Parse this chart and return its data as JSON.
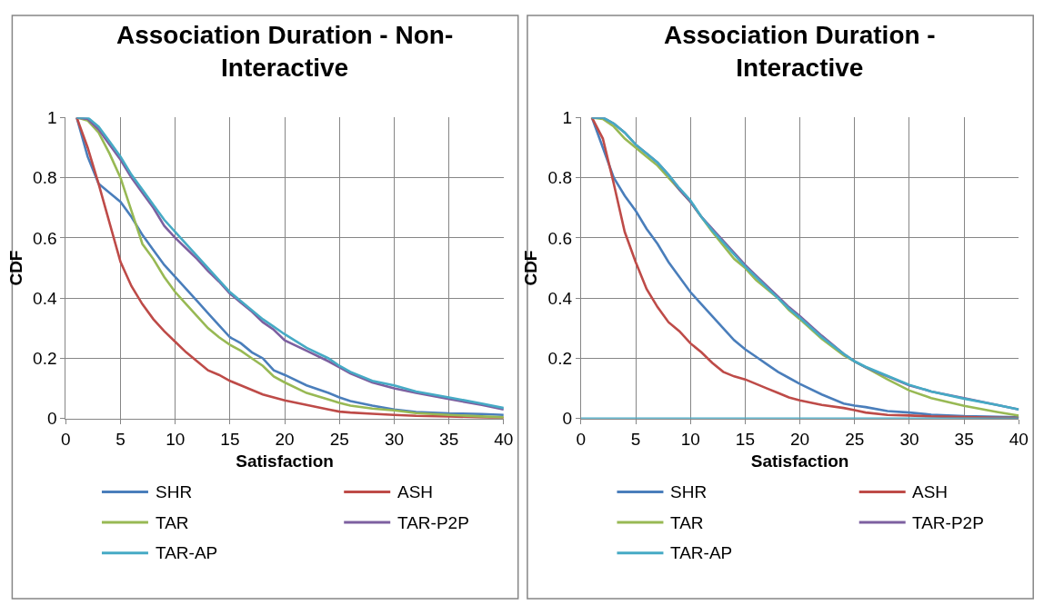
{
  "chart_data": [
    {
      "type": "line",
      "title": "Association Duration - Non-Interactive",
      "xlabel": "Satisfaction",
      "ylabel": "CDF",
      "x": [
        1,
        2,
        3,
        4,
        5,
        6,
        7,
        8,
        9,
        10,
        11,
        12,
        13,
        14,
        15,
        16,
        17,
        18,
        19,
        20,
        22,
        24,
        25,
        26,
        28,
        30,
        32,
        35,
        38,
        40
      ],
      "xlim": [
        0,
        40
      ],
      "xticks": [
        0,
        5,
        10,
        15,
        20,
        25,
        30,
        35,
        40
      ],
      "ylim": [
        0,
        1
      ],
      "yticks": [
        0,
        0.2,
        0.4,
        0.6,
        0.8,
        1
      ],
      "grid": true,
      "legend": "bottom",
      "marker": "none",
      "line_style": "solid",
      "series": [
        {
          "name": "SHR",
          "color": "#4a7ebb",
          "values": [
            1,
            0.87,
            0.78,
            0.75,
            0.72,
            0.67,
            0.61,
            0.56,
            0.51,
            0.47,
            0.43,
            0.39,
            0.35,
            0.31,
            0.27,
            0.25,
            0.22,
            0.2,
            0.16,
            0.145,
            0.11,
            0.085,
            0.07,
            0.058,
            0.043,
            0.03,
            0.022,
            0.017,
            0.015,
            0.012
          ]
        },
        {
          "name": "ASH",
          "color": "#be4b48",
          "values": [
            1,
            0.9,
            0.78,
            0.65,
            0.52,
            0.44,
            0.38,
            0.33,
            0.29,
            0.255,
            0.22,
            0.19,
            0.16,
            0.145,
            0.125,
            0.11,
            0.095,
            0.08,
            0.07,
            0.06,
            0.045,
            0.03,
            0.023,
            0.02,
            0.016,
            0.012,
            0.009,
            0.007,
            0.004,
            0.002
          ]
        },
        {
          "name": "TAR",
          "color": "#98b954",
          "values": [
            1,
            0.99,
            0.95,
            0.88,
            0.8,
            0.69,
            0.58,
            0.53,
            0.47,
            0.42,
            0.38,
            0.34,
            0.3,
            0.27,
            0.245,
            0.225,
            0.2,
            0.175,
            0.14,
            0.12,
            0.085,
            0.063,
            0.052,
            0.043,
            0.033,
            0.027,
            0.018,
            0.012,
            0.007,
            0.004
          ]
        },
        {
          "name": "TAR-P2P",
          "color": "#7d60a0",
          "values": [
            1,
            0.995,
            0.96,
            0.91,
            0.86,
            0.8,
            0.75,
            0.7,
            0.64,
            0.6,
            0.565,
            0.53,
            0.49,
            0.455,
            0.415,
            0.385,
            0.355,
            0.32,
            0.295,
            0.26,
            0.225,
            0.19,
            0.17,
            0.15,
            0.12,
            0.1,
            0.085,
            0.065,
            0.045,
            0.03
          ]
        },
        {
          "name": "TAR-AP",
          "color": "#46aac5",
          "values": [
            1,
            1,
            0.97,
            0.92,
            0.87,
            0.81,
            0.76,
            0.71,
            0.66,
            0.62,
            0.58,
            0.54,
            0.5,
            0.46,
            0.42,
            0.39,
            0.36,
            0.33,
            0.305,
            0.28,
            0.235,
            0.2,
            0.175,
            0.155,
            0.125,
            0.11,
            0.09,
            0.07,
            0.05,
            0.035
          ]
        }
      ]
    },
    {
      "type": "line",
      "title": "Association Duration - Interactive",
      "xlabel": "Satisfaction",
      "ylabel": "CDF",
      "x": [
        1,
        2,
        3,
        4,
        5,
        6,
        7,
        8,
        9,
        10,
        11,
        12,
        13,
        14,
        15,
        16,
        17,
        18,
        19,
        20,
        22,
        24,
        25,
        26,
        28,
        30,
        32,
        35,
        38,
        40
      ],
      "xlim": [
        0,
        40
      ],
      "xticks": [
        0,
        5,
        10,
        15,
        20,
        25,
        30,
        35,
        40
      ],
      "ylim": [
        0,
        1
      ],
      "yticks": [
        0,
        0.2,
        0.4,
        0.6,
        0.8,
        1
      ],
      "grid": true,
      "legend": "bottom",
      "marker": "none",
      "line_style": "solid",
      "series": [
        {
          "name": "SHR",
          "color": "#4a7ebb",
          "values": [
            1,
            0.9,
            0.8,
            0.74,
            0.69,
            0.63,
            0.58,
            0.52,
            0.47,
            0.42,
            0.38,
            0.34,
            0.3,
            0.26,
            0.23,
            0.205,
            0.18,
            0.155,
            0.135,
            0.115,
            0.08,
            0.05,
            0.043,
            0.038,
            0.025,
            0.02,
            0.013,
            0.008,
            0.006,
            0.004
          ]
        },
        {
          "name": "ASH",
          "color": "#be4b48",
          "values": [
            1,
            0.93,
            0.78,
            0.62,
            0.52,
            0.43,
            0.37,
            0.32,
            0.29,
            0.25,
            0.22,
            0.185,
            0.155,
            0.14,
            0.13,
            0.115,
            0.1,
            0.085,
            0.07,
            0.06,
            0.045,
            0.035,
            0.028,
            0.02,
            0.012,
            0.01,
            0.007,
            0.005,
            0.003,
            0.002
          ]
        },
        {
          "name": "TAR",
          "color": "#98b954",
          "values": [
            1,
            0.995,
            0.97,
            0.93,
            0.9,
            0.87,
            0.84,
            0.8,
            0.76,
            0.72,
            0.67,
            0.62,
            0.575,
            0.53,
            0.5,
            0.46,
            0.43,
            0.4,
            0.36,
            0.33,
            0.265,
            0.21,
            0.19,
            0.17,
            0.13,
            0.093,
            0.068,
            0.042,
            0.022,
            0.01
          ]
        },
        {
          "name": "TAR-P2P",
          "color": "#7d60a0",
          "values": [
            1,
            1,
            0.98,
            0.95,
            0.91,
            0.88,
            0.85,
            0.81,
            0.76,
            0.72,
            0.67,
            0.63,
            0.59,
            0.55,
            0.51,
            0.475,
            0.44,
            0.405,
            0.37,
            0.34,
            0.275,
            0.215,
            0.19,
            0.17,
            0.14,
            0.11,
            0.09,
            0.068,
            0.045,
            0.03
          ]
        },
        {
          "name": "TAR-AP",
          "color": "#46aac5",
          "values": [
            1,
            1,
            0.98,
            0.95,
            0.91,
            0.88,
            0.85,
            0.81,
            0.765,
            0.725,
            0.67,
            0.625,
            0.585,
            0.545,
            0.505,
            0.47,
            0.435,
            0.4,
            0.365,
            0.335,
            0.27,
            0.215,
            0.19,
            0.172,
            0.142,
            0.112,
            0.09,
            0.066,
            0.045,
            0.03
          ]
        },
        {
          "color": "#46aac5",
          "x": [
            0,
            40
          ],
          "values": [
            0,
            0
          ]
        }
      ]
    }
  ]
}
